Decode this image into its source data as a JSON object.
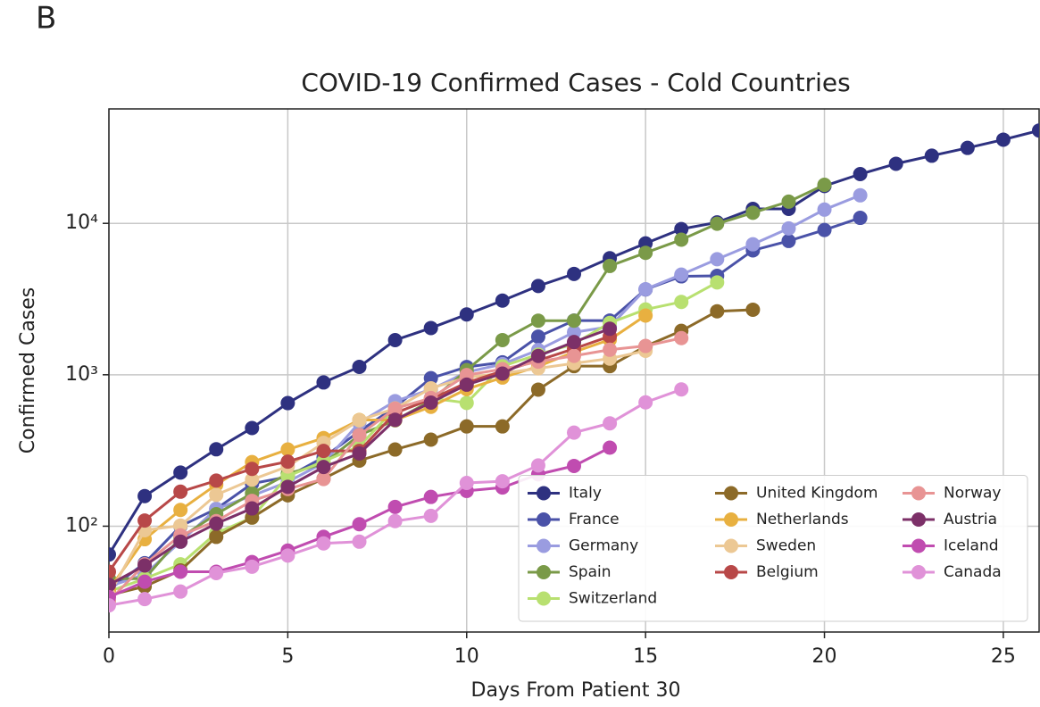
{
  "panel_label": "B",
  "chart_data": {
    "type": "line",
    "title": "COVID-19 Confirmed Cases - Cold Countries",
    "x_label": "Days From Patient 30",
    "y_label": "Confirmed Cases",
    "log_y": true,
    "grid": true,
    "legend": "lower right",
    "xlim": [
      0,
      26
    ],
    "xticks": [
      0,
      5,
      10,
      15,
      20,
      25
    ],
    "ylim": [
      20,
      57000
    ],
    "yticks": [
      {
        "value": 100,
        "label": "10²"
      },
      {
        "value": 1000,
        "label": "10³"
      },
      {
        "value": 10000,
        "label": "10⁴"
      }
    ],
    "x": [
      0,
      1,
      2,
      3,
      4,
      5,
      6,
      7,
      8,
      9,
      10,
      11,
      12,
      13,
      14,
      15,
      16,
      17,
      18,
      19,
      20,
      21,
      22,
      23,
      24,
      25,
      26
    ],
    "series": [
      {
        "name": "Italy",
        "color": "#2e3180",
        "values": [
          65,
          158,
          226,
          322,
          445,
          650,
          890,
          1128,
          1694,
          2036,
          2502,
          3089,
          3858,
          4636,
          5883,
          7375,
          9172,
          10149,
          12462,
          12462,
          17660,
          21157,
          24747,
          27980,
          31506,
          35713,
          41035
        ]
      },
      {
        "name": "France",
        "color": "#4a52a8",
        "values": [
          38,
          57,
          100,
          130,
          191,
          212,
          285,
          423,
          613,
          949,
          1126,
          1209,
          1784,
          2281,
          2281,
          3661,
          4469,
          4499,
          6633,
          7652,
          9043,
          10871,
          null,
          null,
          null,
          null,
          null
        ]
      },
      {
        "name": "Germany",
        "color": "#9a9ce0",
        "values": [
          40,
          48,
          79,
          130,
          159,
          196,
          262,
          482,
          670,
          799,
          1040,
          1176,
          1457,
          1908,
          2078,
          3675,
          4585,
          5795,
          7272,
          9257,
          12327,
          15320,
          null,
          null,
          null,
          null,
          null
        ]
      },
      {
        "name": "Spain",
        "color": "#7a9a48",
        "values": [
          45,
          45,
          84,
          120,
          165,
          222,
          259,
          400,
          500,
          673,
          1073,
          1695,
          2277,
          2277,
          5232,
          6391,
          7798,
          9942,
          11748,
          13910,
          17963,
          null,
          null,
          null,
          null,
          null,
          null
        ]
      },
      {
        "name": "Switzerland",
        "color": "#b8e070",
        "values": [
          37,
          45,
          56,
          90,
          114,
          214,
          268,
          337,
          600,
          700,
          652,
          1139,
          1359,
          1600,
          2200,
          2700,
          3028,
          4075,
          null,
          null,
          null,
          null,
          null,
          null,
          null,
          null,
          null
        ]
      },
      {
        "name": "United Kingdom",
        "color": "#8c6a28",
        "values": [
          35,
          40,
          51,
          85,
          114,
          160,
          206,
          271,
          321,
          373,
          456,
          456,
          798,
          1140,
          1140,
          1543,
          1950,
          2626,
          2689,
          null,
          null,
          null,
          null,
          null,
          null,
          null,
          null
        ]
      },
      {
        "name": "Netherlands",
        "color": "#e8b040",
        "values": [
          38,
          82,
          128,
          188,
          265,
          321,
          382,
          503,
          503,
          614,
          804,
          959,
          1135,
          1413,
          1705,
          2460,
          null,
          null,
          null,
          null,
          null,
          null,
          null,
          null,
          null,
          null,
          null
        ]
      },
      {
        "name": "Sweden",
        "color": "#ecc894",
        "values": [
          35,
          94,
          101,
          161,
          203,
          248,
          355,
          500,
          599,
          814,
          961,
          1022,
          1103,
          1190,
          1279,
          1439,
          null,
          null,
          null,
          null,
          null,
          null,
          null,
          null,
          null,
          null,
          null
        ]
      },
      {
        "name": "Belgium",
        "color": "#b84848",
        "values": [
          50,
          109,
          169,
          200,
          239,
          267,
          314,
          314,
          559,
          689,
          886,
          1058,
          1243,
          1486,
          1795,
          null,
          null,
          null,
          null,
          null,
          null,
          null,
          null,
          null,
          null,
          null,
          null
        ]
      },
      {
        "name": "Norway",
        "color": "#e89494",
        "values": [
          32,
          56,
          87,
          108,
          147,
          176,
          205,
          400,
          598,
          702,
          996,
          1090,
          1221,
          1333,
          1463,
          1550,
          1746,
          null,
          null,
          null,
          null,
          null,
          null,
          null,
          null,
          null,
          null
        ]
      },
      {
        "name": "Austria",
        "color": "#7c3068",
        "values": [
          41,
          55,
          79,
          104,
          131,
          182,
          246,
          302,
          504,
          655,
          860,
          1018,
          1332,
          1646,
          2013,
          null,
          null,
          null,
          null,
          null,
          null,
          null,
          null,
          null,
          null,
          null,
          null
        ]
      },
      {
        "name": "Iceland",
        "color": "#c04cb0",
        "values": [
          34,
          43,
          50,
          50,
          58,
          69,
          85,
          103,
          134,
          156,
          171,
          180,
          220,
          250,
          330,
          null,
          null,
          null,
          null,
          null,
          null,
          null,
          null,
          null,
          null,
          null,
          null
        ]
      },
      {
        "name": "Canada",
        "color": "#e092d8",
        "values": [
          30,
          33,
          37,
          49,
          54,
          64,
          77,
          79,
          108,
          117,
          193,
          198,
          252,
          415,
          478,
          657,
          800,
          null,
          null,
          null,
          null,
          null,
          null,
          null,
          null,
          null,
          null
        ]
      }
    ]
  }
}
